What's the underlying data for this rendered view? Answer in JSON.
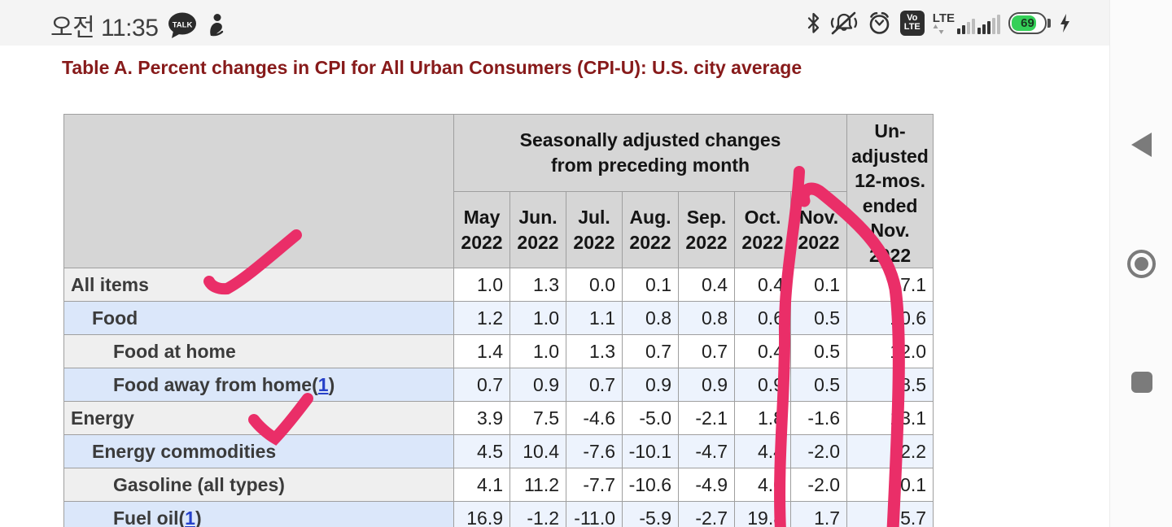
{
  "status_bar": {
    "time": "오전 11:35",
    "kakao_label": "TALK",
    "volte_line1": "Vo",
    "volte_line2": "LTE",
    "lte_label": "LTE",
    "battery_percent": "69"
  },
  "title": "Table A. Percent changes in CPI for All Urban Consumers (CPI-U): U.S. city average",
  "table": {
    "group_header": "Seasonally adjusted changes from preceding month",
    "unadjusted_header_lines": [
      "Un-",
      "adjusted",
      "12-mos.",
      "ended",
      "Nov.",
      "2022"
    ],
    "months": [
      "May",
      "Jun.",
      "Jul.",
      "Aug.",
      "Sep.",
      "Oct.",
      "Nov."
    ],
    "year": "2022",
    "rows": [
      {
        "label": "All items",
        "footnote": null,
        "indent": 0,
        "values": [
          "1.0",
          "1.3",
          "0.0",
          "0.1",
          "0.4",
          "0.4",
          "0.1"
        ],
        "yoy": "7.1"
      },
      {
        "label": "Food",
        "footnote": null,
        "indent": 1,
        "values": [
          "1.2",
          "1.0",
          "1.1",
          "0.8",
          "0.8",
          "0.6",
          "0.5"
        ],
        "yoy": "10.6"
      },
      {
        "label": "Food at home",
        "footnote": null,
        "indent": 2,
        "values": [
          "1.4",
          "1.0",
          "1.3",
          "0.7",
          "0.7",
          "0.4",
          "0.5"
        ],
        "yoy": "12.0"
      },
      {
        "label": "Food away from home",
        "footnote": "1",
        "indent": 2,
        "values": [
          "0.7",
          "0.9",
          "0.7",
          "0.9",
          "0.9",
          "0.9",
          "0.5"
        ],
        "yoy": "8.5"
      },
      {
        "label": "Energy",
        "footnote": null,
        "indent": 0,
        "values": [
          "3.9",
          "7.5",
          "-4.6",
          "-5.0",
          "-2.1",
          "1.8",
          "-1.6"
        ],
        "yoy": "13.1"
      },
      {
        "label": "Energy commodities",
        "footnote": null,
        "indent": 1,
        "values": [
          "4.5",
          "10.4",
          "-7.6",
          "-10.1",
          "-4.7",
          "4.4",
          "-2.0"
        ],
        "yoy": "12.2"
      },
      {
        "label": "Gasoline (all types)",
        "footnote": null,
        "indent": 2,
        "values": [
          "4.1",
          "11.2",
          "-7.7",
          "-10.6",
          "-4.9",
          "4.0",
          "-2.0"
        ],
        "yoy": "10.1"
      },
      {
        "label": "Fuel oil",
        "footnote": "1",
        "indent": 2,
        "values": [
          "16.9",
          "-1.2",
          "-11.0",
          "-5.9",
          "-2.7",
          "19.8",
          "1.7"
        ],
        "yoy": "65.7"
      }
    ]
  },
  "annotations": {
    "marker_color": "#ea2e68"
  },
  "colors": {
    "title_text": "#871a1a",
    "header_bg": "#d6d6d6",
    "row_blue_stub": "#dbe7fa",
    "row_blue_cell": "#edf3fd",
    "row_gray_stub": "#efefef",
    "footnote_link": "#2540c9",
    "battery_green": "#34d058"
  }
}
